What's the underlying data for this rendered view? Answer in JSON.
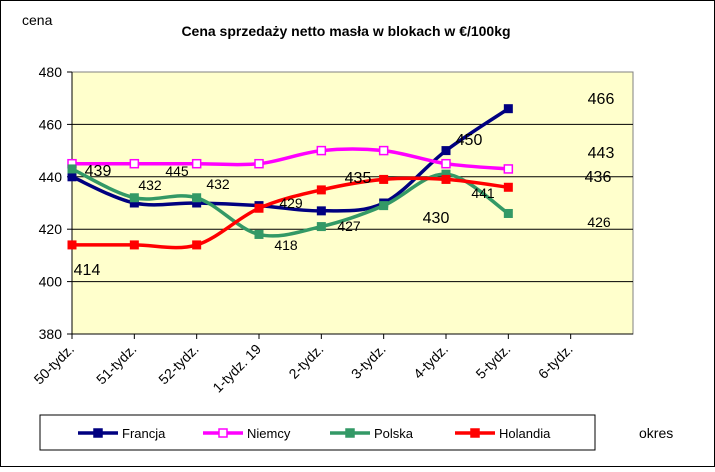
{
  "chart_data": {
    "type": "line",
    "title": "Cena sprzedaży netto masła  w blokach  w €/100kg",
    "ylabel": "cena",
    "xlabel": "okres",
    "ylim": [
      380,
      480
    ],
    "yticks": [
      380,
      400,
      420,
      440,
      460,
      480
    ],
    "categories": [
      "50-tydz.",
      "51-tydz.",
      "52-tydz.",
      "1-tydz. 19",
      "2-tydz.",
      "3-tydz.",
      "4-tydz.",
      "5-tydz.",
      "6-tydz."
    ],
    "grid": true,
    "plot_background": "#ffffcc",
    "legend_position": "bottom",
    "series": [
      {
        "name": "Francja",
        "color": "#000080",
        "marker": "square-filled",
        "values": [
          440,
          430,
          430,
          429,
          427,
          430,
          450,
          466,
          null
        ]
      },
      {
        "name": "Niemcy",
        "color": "#ff00ff",
        "marker": "square-open",
        "values": [
          445,
          445,
          445,
          445,
          450,
          450,
          445,
          443,
          null
        ]
      },
      {
        "name": "Polska",
        "color": "#339966",
        "marker": "square-filled",
        "values": [
          443,
          432,
          432,
          418,
          421,
          429,
          441,
          426,
          null
        ]
      },
      {
        "name": "Holandia",
        "color": "#ff0000",
        "marker": "square-filled",
        "values": [
          414,
          414,
          414,
          428,
          435,
          439,
          439,
          436,
          null
        ]
      }
    ],
    "data_labels": [
      "439",
      "432",
      "445",
      "432",
      "429",
      "418",
      "435",
      "427",
      "430",
      "450",
      "441",
      "466",
      "443",
      "436",
      "426",
      "414"
    ]
  }
}
